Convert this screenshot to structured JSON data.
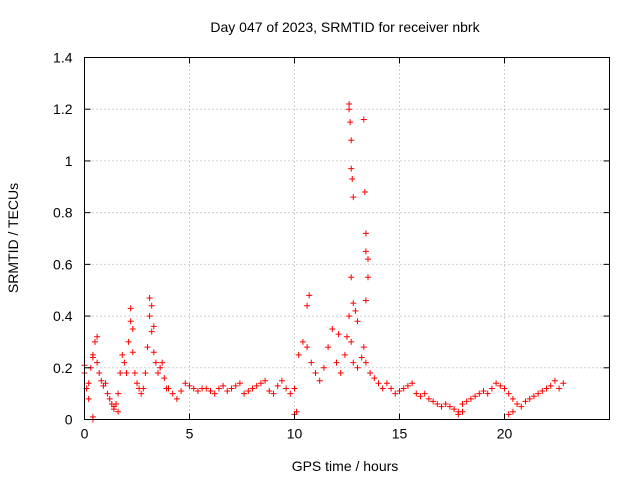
{
  "chart_data": {
    "type": "scatter",
    "title": "Day 047 of 2023, SRMTID for receiver nbrk",
    "xlabel": "GPS time / hours",
    "ylabel": "SRMTID / TECUs",
    "xlim": [
      0,
      25
    ],
    "ylim": [
      0,
      1.4
    ],
    "xticks": [
      0,
      5,
      10,
      15,
      20
    ],
    "xtick_labels": [
      "0",
      "5",
      "10",
      "15",
      "20"
    ],
    "yticks": [
      0,
      0.2,
      0.4,
      0.6,
      0.8,
      1,
      1.2,
      1.4
    ],
    "ytick_labels": [
      "0",
      "0.2",
      "0.4",
      "0.6",
      "0.8",
      "1",
      "1.2",
      "1.4"
    ],
    "grid": true,
    "marker": "+",
    "color": "#ff0000",
    "series": [
      {
        "name": "SRMTID",
        "x": [
          0.0,
          0.1,
          0.2,
          0.3,
          0.4,
          0.5,
          0.6,
          0.7,
          0.8,
          0.9,
          1.0,
          1.1,
          1.2,
          1.3,
          1.4,
          1.5,
          1.6,
          1.7,
          1.8,
          1.9,
          2.0,
          2.1,
          2.2,
          2.3,
          2.4,
          2.5,
          2.6,
          2.7,
          2.8,
          2.9,
          3.0,
          3.1,
          3.2,
          3.3,
          3.4,
          3.5,
          3.6,
          3.7,
          3.8,
          3.9,
          4.0,
          4.2,
          4.4,
          4.6,
          4.8,
          5.0,
          5.2,
          5.4,
          5.6,
          5.8,
          6.0,
          6.2,
          6.4,
          6.6,
          6.8,
          7.0,
          7.2,
          7.4,
          7.6,
          7.8,
          8.0,
          8.2,
          8.4,
          8.6,
          8.8,
          9.0,
          9.2,
          9.4,
          9.6,
          9.8,
          10.0,
          10.2,
          10.4,
          10.6,
          10.8,
          11.0,
          11.2,
          11.4,
          11.6,
          11.8,
          12.0,
          12.2,
          12.4,
          12.5,
          12.6,
          12.7,
          12.8,
          13.0,
          13.2,
          13.3,
          13.4,
          13.6,
          13.8,
          14.0,
          14.2,
          14.4,
          14.6,
          14.8,
          15.0,
          15.2,
          15.4,
          15.6,
          15.8,
          16.0,
          16.2,
          16.4,
          16.6,
          16.8,
          17.0,
          17.2,
          17.4,
          17.6,
          17.8,
          18.0,
          18.2,
          18.4,
          18.6,
          18.8,
          19.0,
          19.2,
          19.4,
          19.6,
          19.8,
          20.0,
          20.2,
          20.4,
          20.6,
          20.8,
          21.0,
          21.2,
          21.4,
          21.6,
          21.8,
          22.0,
          22.2,
          22.4,
          22.6,
          22.8,
          0.0,
          0.2,
          0.4,
          0.6,
          1.4,
          1.6,
          2.2,
          2.3,
          3.1,
          3.2,
          3.3,
          10.6,
          10.7,
          12.1,
          12.6,
          12.6,
          12.65,
          12.7,
          12.7,
          12.75,
          12.8,
          13.3,
          13.35,
          13.4,
          13.4,
          13.5,
          13.5,
          13.4,
          12.7,
          12.8,
          12.9,
          13.0,
          0.4,
          0.4,
          10.0,
          10.1,
          17.8,
          18.0,
          20.2,
          20.4
        ],
        "y": [
          0.18,
          0.12,
          0.14,
          0.2,
          0.24,
          0.3,
          0.22,
          0.18,
          0.15,
          0.13,
          0.14,
          0.1,
          0.08,
          0.06,
          0.04,
          0.06,
          0.1,
          0.18,
          0.25,
          0.22,
          0.18,
          0.3,
          0.38,
          0.26,
          0.18,
          0.14,
          0.12,
          0.1,
          0.12,
          0.18,
          0.28,
          0.4,
          0.34,
          0.26,
          0.22,
          0.18,
          0.2,
          0.22,
          0.16,
          0.12,
          0.12,
          0.1,
          0.08,
          0.11,
          0.14,
          0.13,
          0.12,
          0.11,
          0.12,
          0.12,
          0.11,
          0.1,
          0.12,
          0.13,
          0.11,
          0.12,
          0.13,
          0.14,
          0.1,
          0.11,
          0.12,
          0.13,
          0.14,
          0.15,
          0.11,
          0.1,
          0.13,
          0.15,
          0.12,
          0.1,
          0.12,
          0.25,
          0.3,
          0.28,
          0.22,
          0.18,
          0.15,
          0.2,
          0.28,
          0.35,
          0.22,
          0.18,
          0.25,
          0.32,
          0.4,
          0.3,
          0.22,
          0.2,
          0.24,
          0.28,
          0.22,
          0.18,
          0.16,
          0.14,
          0.12,
          0.14,
          0.12,
          0.1,
          0.11,
          0.12,
          0.13,
          0.14,
          0.1,
          0.09,
          0.1,
          0.08,
          0.07,
          0.06,
          0.05,
          0.06,
          0.05,
          0.04,
          0.03,
          0.06,
          0.07,
          0.08,
          0.09,
          0.1,
          0.11,
          0.1,
          0.12,
          0.14,
          0.13,
          0.12,
          0.1,
          0.08,
          0.06,
          0.05,
          0.07,
          0.08,
          0.09,
          0.1,
          0.11,
          0.12,
          0.13,
          0.15,
          0.12,
          0.14,
          0.21,
          0.08,
          0.25,
          0.32,
          0.05,
          0.03,
          0.43,
          0.35,
          0.47,
          0.44,
          0.36,
          0.44,
          0.48,
          0.33,
          1.22,
          1.2,
          1.15,
          1.08,
          0.97,
          0.93,
          0.86,
          1.16,
          0.88,
          0.72,
          0.65,
          0.62,
          0.55,
          0.46,
          0.55,
          0.45,
          0.42,
          0.38,
          0.0,
          0.01,
          0.02,
          0.03,
          0.02,
          0.03,
          0.02,
          0.03
        ]
      }
    ]
  }
}
